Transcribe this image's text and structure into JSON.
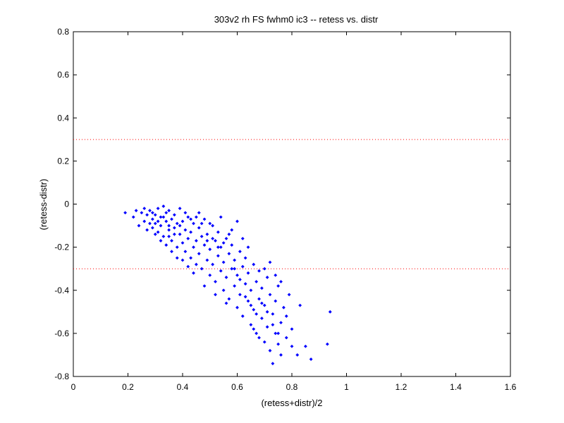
{
  "chart_data": {
    "type": "scatter",
    "title": "303v2 rh FS fwhm0 ic3 -- retess vs. distr",
    "xlabel": "(retess+distr)/2",
    "ylabel": "(retess-distr)",
    "xlim": [
      0,
      1.6
    ],
    "ylim": [
      -0.8,
      0.8
    ],
    "xticks": [
      "0",
      "0.2",
      "0.4",
      "0.6",
      "0.8",
      "1",
      "1.2",
      "1.4",
      "1.6"
    ],
    "yticks": [
      "-0.8",
      "-0.6",
      "-0.4",
      "-0.2",
      "0",
      "0.2",
      "0.4",
      "0.6",
      "0.8"
    ],
    "grid": false,
    "colors": {
      "points": "#0000ff",
      "reference_lines": "#ff0000",
      "axes": "#000000"
    },
    "reference_lines": [
      {
        "y": 0.3,
        "style": "dotted"
      },
      {
        "y": -0.3,
        "style": "dotted"
      }
    ],
    "series": [
      {
        "marker": "dot",
        "points": [
          [
            0.19,
            -0.04
          ],
          [
            0.22,
            -0.06
          ],
          [
            0.23,
            -0.03
          ],
          [
            0.24,
            -0.1
          ],
          [
            0.25,
            -0.04
          ],
          [
            0.26,
            -0.08
          ],
          [
            0.26,
            -0.02
          ],
          [
            0.27,
            -0.12
          ],
          [
            0.27,
            -0.05
          ],
          [
            0.28,
            -0.09
          ],
          [
            0.28,
            -0.03
          ],
          [
            0.29,
            -0.07
          ],
          [
            0.29,
            -0.11
          ],
          [
            0.3,
            -0.05
          ],
          [
            0.3,
            -0.09
          ],
          [
            0.31,
            -0.02
          ],
          [
            0.31,
            -0.13
          ],
          [
            0.32,
            -0.06
          ],
          [
            0.32,
            -0.1
          ],
          [
            0.33,
            -0.01
          ],
          [
            0.33,
            -0.15
          ],
          [
            0.34,
            -0.04
          ],
          [
            0.34,
            -0.08
          ],
          [
            0.35,
            -0.12
          ],
          [
            0.35,
            -0.03
          ],
          [
            0.36,
            -0.17
          ],
          [
            0.36,
            -0.07
          ],
          [
            0.37,
            -0.11
          ],
          [
            0.37,
            -0.05
          ],
          [
            0.38,
            -0.2
          ],
          [
            0.38,
            -0.09
          ],
          [
            0.39,
            -0.14
          ],
          [
            0.39,
            -0.02
          ],
          [
            0.4,
            -0.18
          ],
          [
            0.4,
            -0.08
          ],
          [
            0.41,
            -0.22
          ],
          [
            0.41,
            -0.12
          ],
          [
            0.42,
            -0.16
          ],
          [
            0.42,
            -0.06
          ],
          [
            0.43,
            -0.25
          ],
          [
            0.43,
            -0.13
          ],
          [
            0.44,
            -0.2
          ],
          [
            0.44,
            -0.09
          ],
          [
            0.45,
            -0.28
          ],
          [
            0.45,
            -0.17
          ],
          [
            0.46,
            -0.11
          ],
          [
            0.46,
            -0.23
          ],
          [
            0.47,
            -0.15
          ],
          [
            0.47,
            -0.3
          ],
          [
            0.48,
            -0.19
          ],
          [
            0.48,
            -0.07
          ],
          [
            0.49,
            -0.26
          ],
          [
            0.49,
            -0.14
          ],
          [
            0.5,
            -0.33
          ],
          [
            0.5,
            -0.21
          ],
          [
            0.51,
            -0.1
          ],
          [
            0.51,
            -0.28
          ],
          [
            0.52,
            -0.17
          ],
          [
            0.52,
            -0.36
          ],
          [
            0.53,
            -0.24
          ],
          [
            0.53,
            -0.13
          ],
          [
            0.54,
            -0.31
          ],
          [
            0.54,
            -0.2
          ],
          [
            0.55,
            -0.4
          ],
          [
            0.55,
            -0.27
          ],
          [
            0.56,
            -0.16
          ],
          [
            0.56,
            -0.34
          ],
          [
            0.57,
            -0.23
          ],
          [
            0.57,
            -0.44
          ],
          [
            0.58,
            -0.3
          ],
          [
            0.58,
            -0.19
          ],
          [
            0.59,
            -0.38
          ],
          [
            0.59,
            -0.26
          ],
          [
            0.6,
            -0.48
          ],
          [
            0.6,
            -0.33
          ],
          [
            0.61,
            -0.22
          ],
          [
            0.61,
            -0.42
          ],
          [
            0.62,
            -0.29
          ],
          [
            0.62,
            -0.52
          ],
          [
            0.63,
            -0.37
          ],
          [
            0.63,
            -0.25
          ],
          [
            0.64,
            -0.45
          ],
          [
            0.64,
            -0.32
          ],
          [
            0.65,
            -0.56
          ],
          [
            0.65,
            -0.4
          ],
          [
            0.66,
            -0.28
          ],
          [
            0.66,
            -0.49
          ],
          [
            0.67,
            -0.36
          ],
          [
            0.67,
            -0.6
          ],
          [
            0.68,
            -0.44
          ],
          [
            0.68,
            -0.31
          ],
          [
            0.69,
            -0.53
          ],
          [
            0.69,
            -0.39
          ],
          [
            0.7,
            -0.64
          ],
          [
            0.7,
            -0.47
          ],
          [
            0.71,
            -0.34
          ],
          [
            0.71,
            -0.57
          ],
          [
            0.72,
            -0.42
          ],
          [
            0.72,
            -0.68
          ],
          [
            0.73,
            -0.51
          ],
          [
            0.73,
            -0.74
          ],
          [
            0.74,
            -0.6
          ],
          [
            0.74,
            -0.45
          ],
          [
            0.75,
            -0.65
          ],
          [
            0.75,
            -0.38
          ],
          [
            0.76,
            -0.55
          ],
          [
            0.76,
            -0.7
          ],
          [
            0.77,
            -0.48
          ],
          [
            0.78,
            -0.62
          ],
          [
            0.79,
            -0.42
          ],
          [
            0.8,
            -0.58
          ],
          [
            0.82,
            -0.7
          ],
          [
            0.83,
            -0.47
          ],
          [
            0.85,
            -0.66
          ],
          [
            0.87,
            -0.72
          ],
          [
            0.93,
            -0.65
          ],
          [
            0.94,
            -0.5
          ],
          [
            0.35,
            -0.15
          ],
          [
            0.4,
            -0.26
          ],
          [
            0.44,
            -0.32
          ],
          [
            0.46,
            -0.04
          ],
          [
            0.48,
            -0.38
          ],
          [
            0.5,
            -0.09
          ],
          [
            0.52,
            -0.42
          ],
          [
            0.54,
            -0.06
          ],
          [
            0.56,
            -0.46
          ],
          [
            0.58,
            -0.12
          ],
          [
            0.6,
            -0.08
          ],
          [
            0.62,
            -0.16
          ],
          [
            0.64,
            -0.2
          ],
          [
            0.3,
            -0.14
          ],
          [
            0.32,
            -0.17
          ],
          [
            0.34,
            -0.19
          ],
          [
            0.36,
            -0.22
          ],
          [
            0.38,
            -0.25
          ],
          [
            0.42,
            -0.29
          ],
          [
            0.66,
            -0.58
          ],
          [
            0.68,
            -0.62
          ],
          [
            0.7,
            -0.3
          ],
          [
            0.72,
            -0.27
          ],
          [
            0.74,
            -0.33
          ],
          [
            0.76,
            -0.36
          ],
          [
            0.78,
            -0.52
          ],
          [
            0.8,
            -0.66
          ],
          [
            0.29,
            -0.04
          ],
          [
            0.31,
            -0.08
          ],
          [
            0.33,
            -0.06
          ],
          [
            0.35,
            -0.1
          ],
          [
            0.37,
            -0.14
          ],
          [
            0.39,
            -0.1
          ],
          [
            0.41,
            -0.04
          ],
          [
            0.43,
            -0.07
          ],
          [
            0.45,
            -0.06
          ],
          [
            0.47,
            -0.09
          ],
          [
            0.49,
            -0.17
          ],
          [
            0.51,
            -0.16
          ],
          [
            0.53,
            -0.2
          ],
          [
            0.55,
            -0.18
          ],
          [
            0.57,
            -0.14
          ],
          [
            0.59,
            -0.3
          ],
          [
            0.61,
            -0.35
          ],
          [
            0.63,
            -0.43
          ],
          [
            0.65,
            -0.47
          ],
          [
            0.67,
            -0.51
          ],
          [
            0.69,
            -0.46
          ],
          [
            0.71,
            -0.5
          ],
          [
            0.73,
            -0.56
          ],
          [
            0.75,
            -0.6
          ]
        ]
      }
    ]
  }
}
